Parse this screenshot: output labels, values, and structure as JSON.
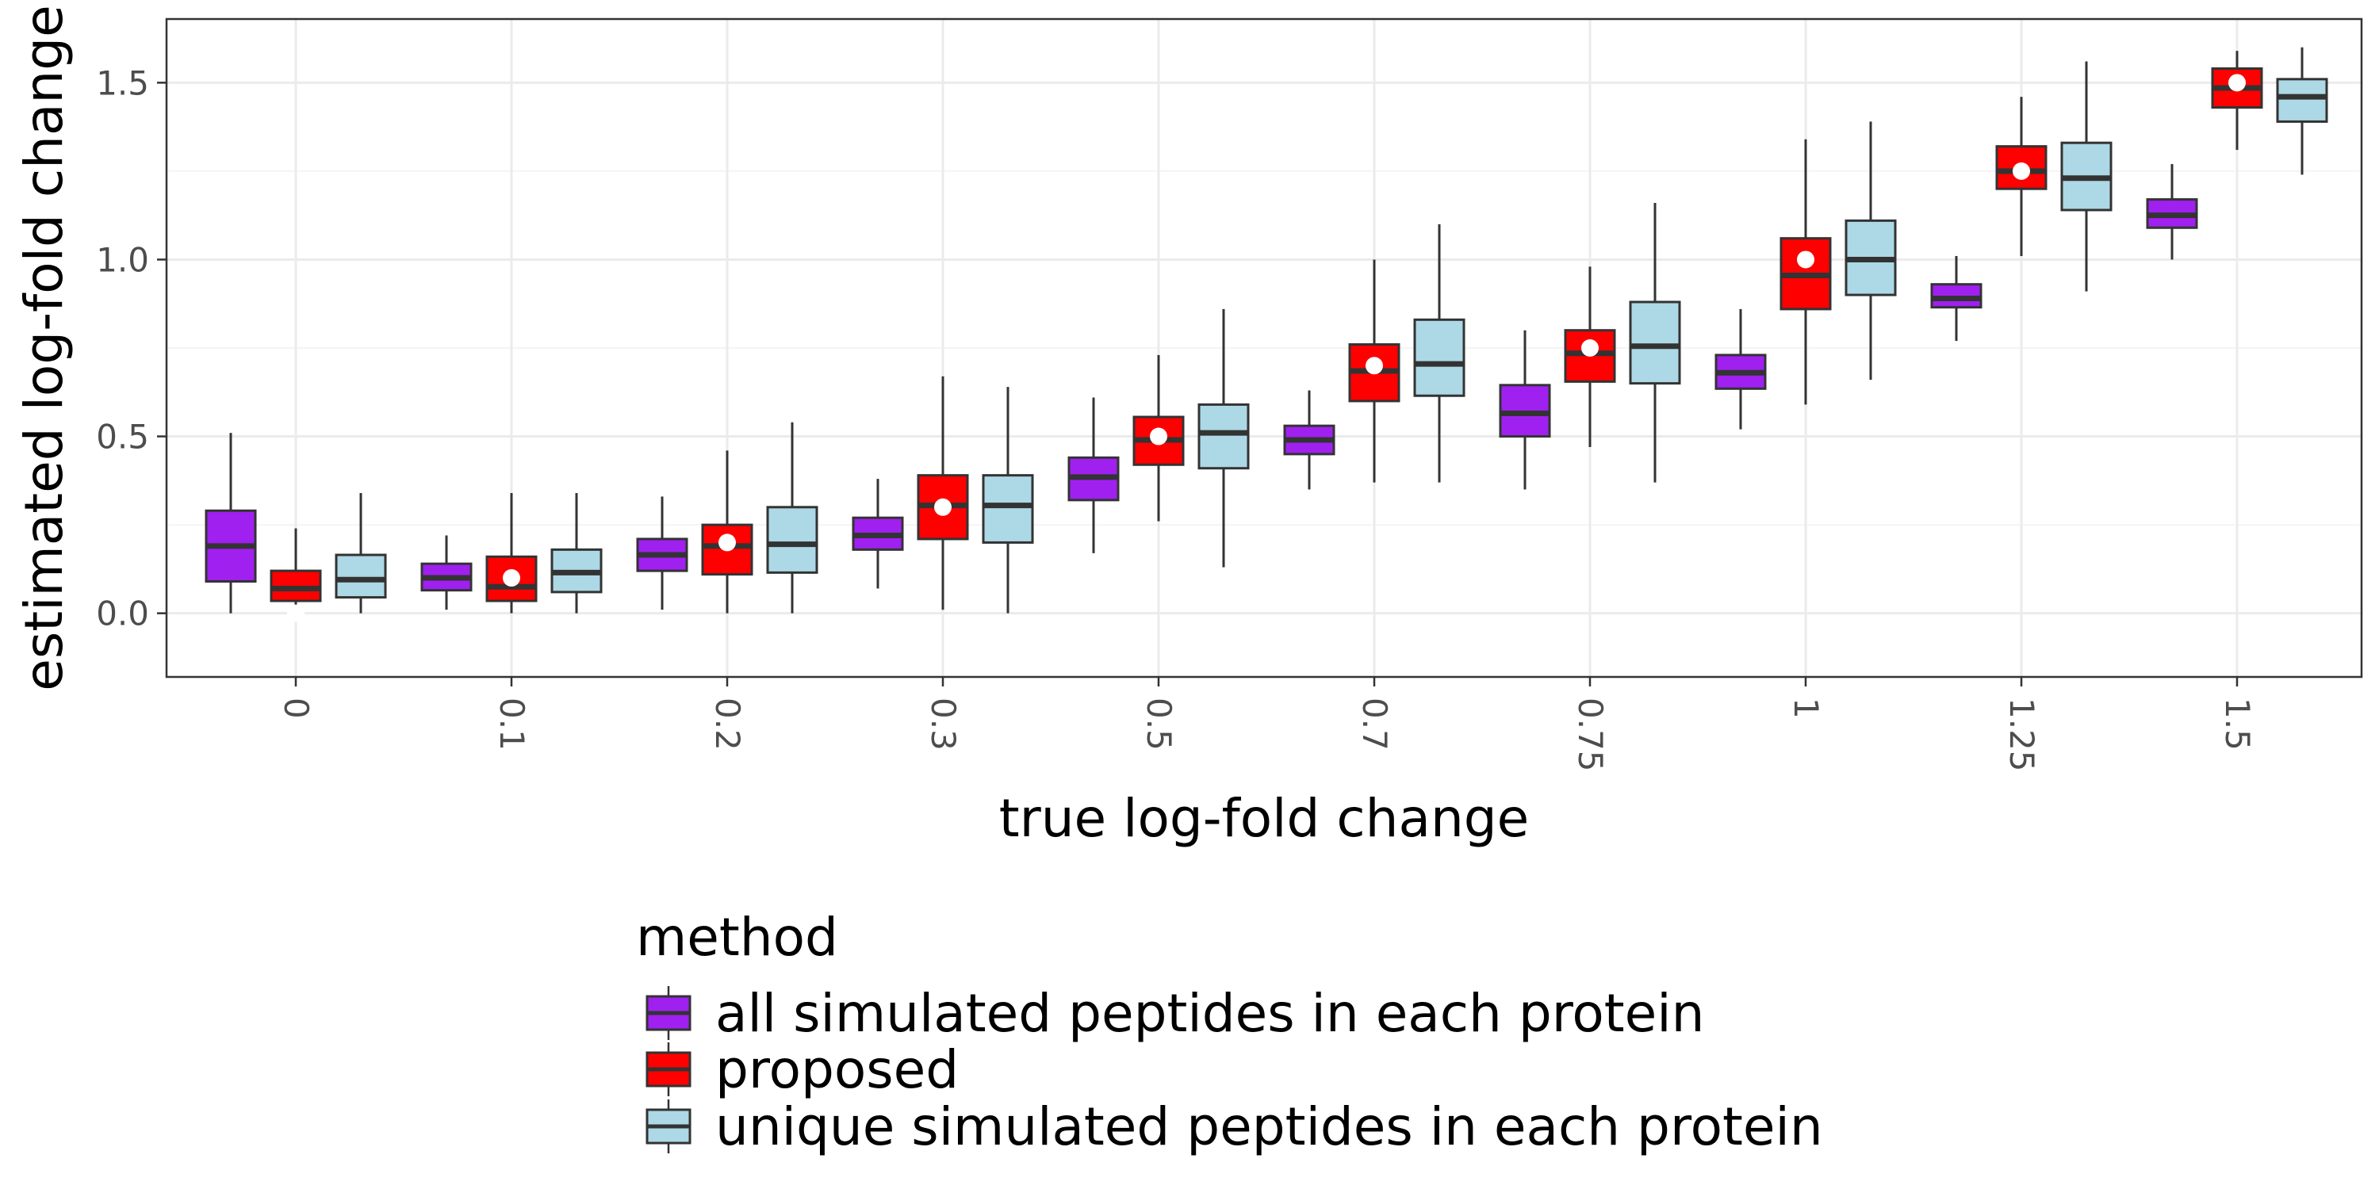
{
  "chart_data": {
    "type": "boxplot",
    "title": "",
    "xlabel": "true log-fold change",
    "ylabel": "estimated log-fold change",
    "ylim": [
      -0.18,
      1.68
    ],
    "yticks": [
      "0.0",
      "0.5",
      "1.0",
      "1.5"
    ],
    "categories": [
      "0",
      "0.1",
      "0.2",
      "0.3",
      "0.5",
      "0.7",
      "0.75",
      "1",
      "1.25",
      "1.5"
    ],
    "true_values": [
      0,
      0.1,
      0.2,
      0.3,
      0.5,
      0.7,
      0.75,
      1,
      1.25,
      1.5
    ],
    "grid": true,
    "legend": {
      "title": "method",
      "placement": "bottom"
    },
    "series": [
      {
        "name": "all simulated peptides in each protein",
        "color": "#a020f0",
        "boxes": [
          {
            "min": 0.0,
            "q1": 0.09,
            "median": 0.19,
            "q3": 0.29,
            "max": 0.51
          },
          {
            "min": 0.01,
            "q1": 0.065,
            "median": 0.1,
            "q3": 0.14,
            "max": 0.22
          },
          {
            "min": 0.01,
            "q1": 0.12,
            "median": 0.165,
            "q3": 0.21,
            "max": 0.33
          },
          {
            "min": 0.07,
            "q1": 0.18,
            "median": 0.22,
            "q3": 0.27,
            "max": 0.38
          },
          {
            "min": 0.17,
            "q1": 0.32,
            "median": 0.385,
            "q3": 0.44,
            "max": 0.61
          },
          {
            "min": 0.35,
            "q1": 0.45,
            "median": 0.49,
            "q3": 0.53,
            "max": 0.63
          },
          {
            "min": 0.35,
            "q1": 0.5,
            "median": 0.565,
            "q3": 0.645,
            "max": 0.8
          },
          {
            "min": 0.52,
            "q1": 0.635,
            "median": 0.68,
            "q3": 0.73,
            "max": 0.86
          },
          {
            "min": 0.77,
            "q1": 0.865,
            "median": 0.89,
            "q3": 0.93,
            "max": 1.01
          },
          {
            "min": 1.0,
            "q1": 1.09,
            "median": 1.125,
            "q3": 1.17,
            "max": 1.27
          }
        ]
      },
      {
        "name": "proposed",
        "color": "#ff0000",
        "boxes": [
          {
            "min": 0.0,
            "q1": 0.035,
            "median": 0.07,
            "q3": 0.12,
            "max": 0.24
          },
          {
            "min": 0.0,
            "q1": 0.035,
            "median": 0.075,
            "q3": 0.16,
            "max": 0.34
          },
          {
            "min": 0.0,
            "q1": 0.11,
            "median": 0.19,
            "q3": 0.25,
            "max": 0.46
          },
          {
            "min": 0.01,
            "q1": 0.21,
            "median": 0.305,
            "q3": 0.39,
            "max": 0.67
          },
          {
            "min": 0.26,
            "q1": 0.42,
            "median": 0.49,
            "q3": 0.555,
            "max": 0.73
          },
          {
            "min": 0.37,
            "q1": 0.6,
            "median": 0.685,
            "q3": 0.76,
            "max": 1.0
          },
          {
            "min": 0.47,
            "q1": 0.655,
            "median": 0.735,
            "q3": 0.8,
            "max": 0.98
          },
          {
            "min": 0.59,
            "q1": 0.86,
            "median": 0.955,
            "q3": 1.06,
            "max": 1.34
          },
          {
            "min": 1.01,
            "q1": 1.2,
            "median": 1.25,
            "q3": 1.32,
            "max": 1.46
          },
          {
            "min": 1.31,
            "q1": 1.43,
            "median": 1.485,
            "q3": 1.54,
            "max": 1.59
          }
        ]
      },
      {
        "name": "unique simulated peptides in each protein",
        "color": "#add8e6",
        "boxes": [
          {
            "min": 0.0,
            "q1": 0.045,
            "median": 0.095,
            "q3": 0.165,
            "max": 0.34
          },
          {
            "min": 0.0,
            "q1": 0.06,
            "median": 0.115,
            "q3": 0.18,
            "max": 0.34
          },
          {
            "min": 0.0,
            "q1": 0.115,
            "median": 0.195,
            "q3": 0.3,
            "max": 0.54
          },
          {
            "min": 0.0,
            "q1": 0.2,
            "median": 0.305,
            "q3": 0.39,
            "max": 0.64
          },
          {
            "min": 0.13,
            "q1": 0.41,
            "median": 0.51,
            "q3": 0.59,
            "max": 0.86
          },
          {
            "min": 0.37,
            "q1": 0.615,
            "median": 0.705,
            "q3": 0.83,
            "max": 1.1
          },
          {
            "min": 0.37,
            "q1": 0.65,
            "median": 0.755,
            "q3": 0.88,
            "max": 1.16
          },
          {
            "min": 0.66,
            "q1": 0.9,
            "median": 1.0,
            "q3": 1.11,
            "max": 1.39
          },
          {
            "min": 0.91,
            "q1": 1.14,
            "median": 1.23,
            "q3": 1.33,
            "max": 1.56
          },
          {
            "min": 1.24,
            "q1": 1.39,
            "median": 1.46,
            "q3": 1.51,
            "max": 1.6
          }
        ]
      }
    ]
  }
}
